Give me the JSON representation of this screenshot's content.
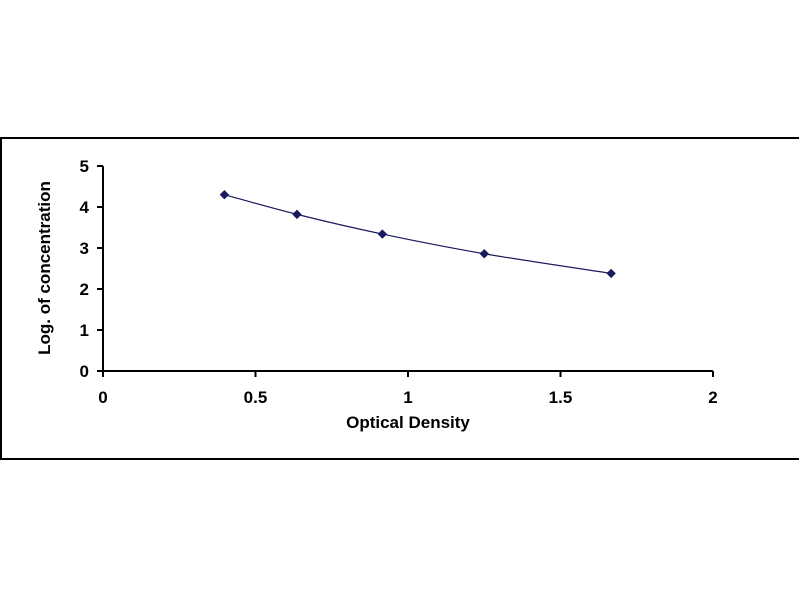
{
  "chart_data": {
    "type": "scatter",
    "xlabel": "Optical Density",
    "ylabel": "Log. of concentration",
    "xlim": [
      0,
      2
    ],
    "ylim": [
      0,
      5
    ],
    "x_ticks": [
      "0",
      "0.5",
      "1",
      "1.5",
      "2"
    ],
    "y_ticks": [
      "0",
      "1",
      "2",
      "3",
      "4",
      "5"
    ],
    "grid": false,
    "legend": "none",
    "trendline": "smooth",
    "series": [
      {
        "x": [
          0.398,
          0.636,
          0.916,
          1.25,
          1.666
        ],
        "y": [
          4.3,
          3.82,
          3.34,
          2.86,
          2.38
        ]
      }
    ],
    "colors": {
      "marker": "#1a1a5e",
      "line": "#1a1a5e",
      "axis": "#000000"
    }
  }
}
